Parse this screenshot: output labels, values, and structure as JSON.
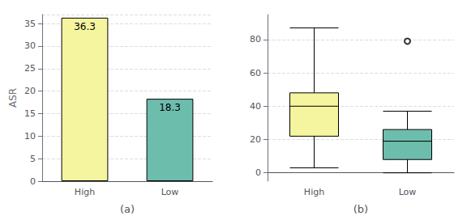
{
  "chart_data": [
    {
      "type": "bar",
      "categories": [
        "High",
        "Low"
      ],
      "values": [
        36.3,
        18.3
      ],
      "colors": [
        "#f5f5a0",
        "#6dbdad"
      ],
      "ylabel": "ASR",
      "xlabel": "(a)",
      "ylim": [
        0,
        37
      ],
      "yticks": [
        0,
        5,
        10,
        15,
        20,
        25,
        30,
        35
      ],
      "grid": true,
      "data_labels": true
    },
    {
      "type": "box",
      "categories": [
        "High",
        "Low"
      ],
      "values": [
        {
          "whisker_low": 3,
          "q1": 22,
          "median": 40,
          "q3": 48,
          "whisker_high": 87,
          "outliers": []
        },
        {
          "whisker_low": 0,
          "q1": 8,
          "median": 19,
          "q3": 26,
          "whisker_high": 37,
          "outliers": [
            79
          ]
        }
      ],
      "colors": [
        "#f5f5a0",
        "#6dbdad"
      ],
      "xlabel": "(b)",
      "ylim": [
        -5,
        95
      ],
      "yticks": [
        0,
        20,
        40,
        60,
        80
      ],
      "grid": true
    }
  ]
}
